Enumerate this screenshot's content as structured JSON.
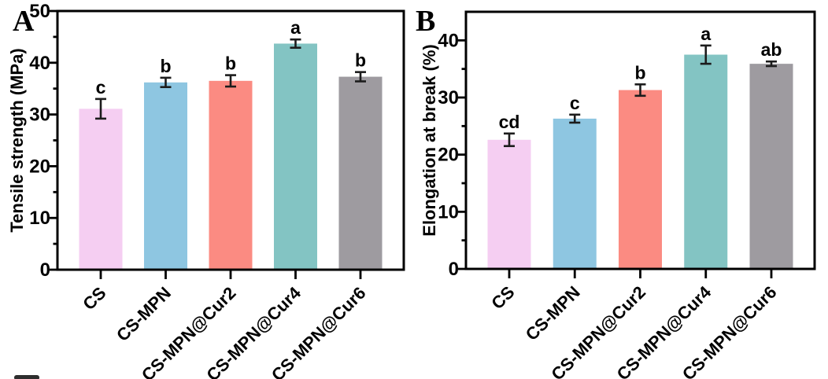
{
  "figure": {
    "background": "#ffffff",
    "colors": {
      "axis": "#000000",
      "error_bar": "#1c1c1c",
      "sig_letter": "#111111"
    }
  },
  "chart_data": [
    {
      "panel": "A",
      "type": "bar",
      "title": "",
      "xlabel": "",
      "ylabel": "Tensile strength (MPa)",
      "categories": [
        "CS",
        "CS-MPN",
        "CS-MPN@Cur2",
        "CS-MPN@Cur4",
        "CS-MPN@Cur6"
      ],
      "values": [
        31.1,
        36.2,
        36.5,
        43.7,
        37.3
      ],
      "errors": [
        1.9,
        0.9,
        1.1,
        0.8,
        0.9
      ],
      "sig_letters": [
        "c",
        "b",
        "b",
        "a",
        "b"
      ],
      "bar_colors": [
        "#F5CEF2",
        "#8EC6E1",
        "#FB8B82",
        "#83C4C3",
        "#9E9BA0"
      ],
      "ylim": [
        0,
        50
      ],
      "ytick_values": [
        0,
        10,
        20,
        30,
        40,
        50
      ],
      "minor_tick_values": [
        5,
        15,
        25,
        35,
        45
      ],
      "grid": false,
      "legend": "none"
    },
    {
      "panel": "B",
      "type": "bar",
      "title": "",
      "xlabel": "",
      "ylabel": "Elongation at break (%)",
      "categories": [
        "CS",
        "CS-MPN",
        "CS-MPN@Cur2",
        "CS-MPN@Cur4",
        "CS-MPN@Cur6"
      ],
      "values": [
        22.6,
        26.3,
        31.3,
        37.5,
        35.9
      ],
      "errors": [
        1.1,
        0.7,
        1.0,
        1.6,
        0.4
      ],
      "sig_letters": [
        "cd",
        "c",
        "b",
        "a",
        "ab"
      ],
      "bar_colors": [
        "#F5CEF2",
        "#8EC6E1",
        "#FB8B82",
        "#83C4C3",
        "#9E9BA0"
      ],
      "ylim": [
        0,
        45
      ],
      "ytick_values": [
        0,
        10,
        20,
        30,
        40
      ],
      "minor_tick_values": [
        5,
        15,
        25,
        35
      ],
      "grid": false,
      "legend": "none"
    }
  ]
}
